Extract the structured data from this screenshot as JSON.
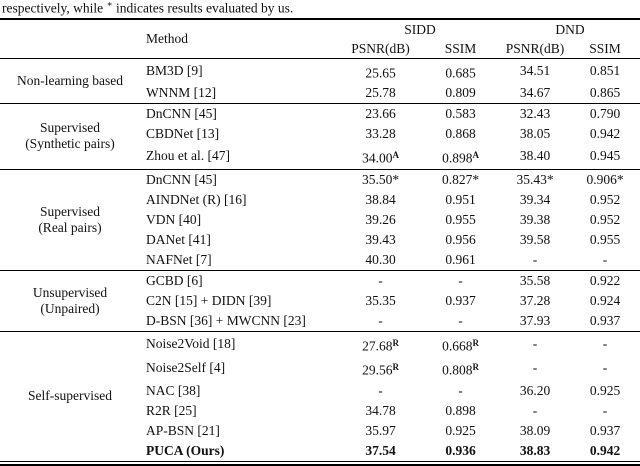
{
  "caption": {
    "pre": "respectively, while",
    "sym": "∗",
    "post": "indicates results evaluated by us."
  },
  "header": {
    "method": "Method",
    "sidd": "SIDD",
    "dnd": "DND",
    "psnr1": "PSNR(dB)",
    "ssim1": "SSIM",
    "psnr2": "PSNR(dB)",
    "ssim2": "SSIM"
  },
  "groups": [
    {
      "label1": "Non-learning based",
      "label2": "",
      "rows": [
        {
          "method": "BM3D [9]",
          "v0": "25.65",
          "v1": "0.685",
          "v2": "34.51",
          "v3": "0.851"
        },
        {
          "method": "WNNM [12]",
          "v0": "25.78",
          "v1": "0.809",
          "v2": "34.67",
          "v3": "0.865"
        }
      ]
    },
    {
      "label1": "Supervised",
      "label2": "(Synthetic pairs)",
      "rows": [
        {
          "method": "DnCNN [45]",
          "v0": "23.66",
          "v1": "0.583",
          "v2": "32.43",
          "v3": "0.790"
        },
        {
          "method": "CBDNet [13]",
          "v0": "33.28",
          "v1": "0.868",
          "v2": "38.05",
          "v3": "0.942"
        },
        {
          "method": "Zhou et al. [47]",
          "v0": "34.00",
          "s0": "A",
          "v1": "0.898",
          "s1": "A",
          "v2": "38.40",
          "v3": "0.945"
        }
      ]
    },
    {
      "label1": "Supervised",
      "label2": "(Real pairs)",
      "rows": [
        {
          "method": "DnCNN [45]",
          "v0": "35.50*",
          "v1": "0.827*",
          "v2": "35.43*",
          "v3": "0.906*"
        },
        {
          "method": "AINDNet (R) [16]",
          "v0": "38.84",
          "v1": "0.951",
          "v2": "39.34",
          "v3": "0.952"
        },
        {
          "method": "VDN [40]",
          "v0": "39.26",
          "v1": "0.955",
          "v2": "39.38",
          "v3": "0.952"
        },
        {
          "method": "DANet [41]",
          "v0": "39.43",
          "v1": "0.956",
          "v2": "39.58",
          "v3": "0.955"
        },
        {
          "method": "NAFNet [7]",
          "v0": "40.30",
          "v1": "0.961",
          "v2": "-",
          "v3": "-"
        }
      ]
    },
    {
      "label1": "Unsupervised",
      "label2": "(Unpaired)",
      "rows": [
        {
          "method": "GCBD [6]",
          "v0": "-",
          "v1": "-",
          "v2": "35.58",
          "v3": "0.922"
        },
        {
          "method": "C2N [15] + DIDN [39]",
          "v0": "35.35",
          "v1": "0.937",
          "v2": "37.28",
          "v3": "0.924"
        },
        {
          "method": "D-BSN [36] + MWCNN [23]",
          "v0": "-",
          "v1": "-",
          "v2": "37.93",
          "v3": "0.937"
        }
      ]
    },
    {
      "label1": "Self-supervised",
      "label2": "",
      "rows": [
        {
          "method": "Noise2Void [18]",
          "v0": "27.68",
          "s0": "R",
          "v1": "0.668",
          "s1": "R",
          "v2": "-",
          "v3": "-"
        },
        {
          "method": "Noise2Self [4]",
          "v0": "29.56",
          "s0": "R",
          "v1": "0.808",
          "s1": "R",
          "v2": "-",
          "v3": "-"
        },
        {
          "method": "NAC [38]",
          "v0": "-",
          "v1": "-",
          "v2": "36.20",
          "v3": "0.925"
        },
        {
          "method": "R2R [25]",
          "v0": "34.78",
          "v1": "0.898",
          "v2": "-",
          "v3": "-"
        },
        {
          "method": "AP-BSN [21]",
          "v0": "35.97",
          "v1": "0.925",
          "v2": "38.09",
          "v3": "0.937"
        },
        {
          "method": "PUCA (Ours)",
          "v0": "37.54",
          "v1": "0.936",
          "v2": "38.83",
          "v3": "0.942"
        }
      ]
    }
  ]
}
